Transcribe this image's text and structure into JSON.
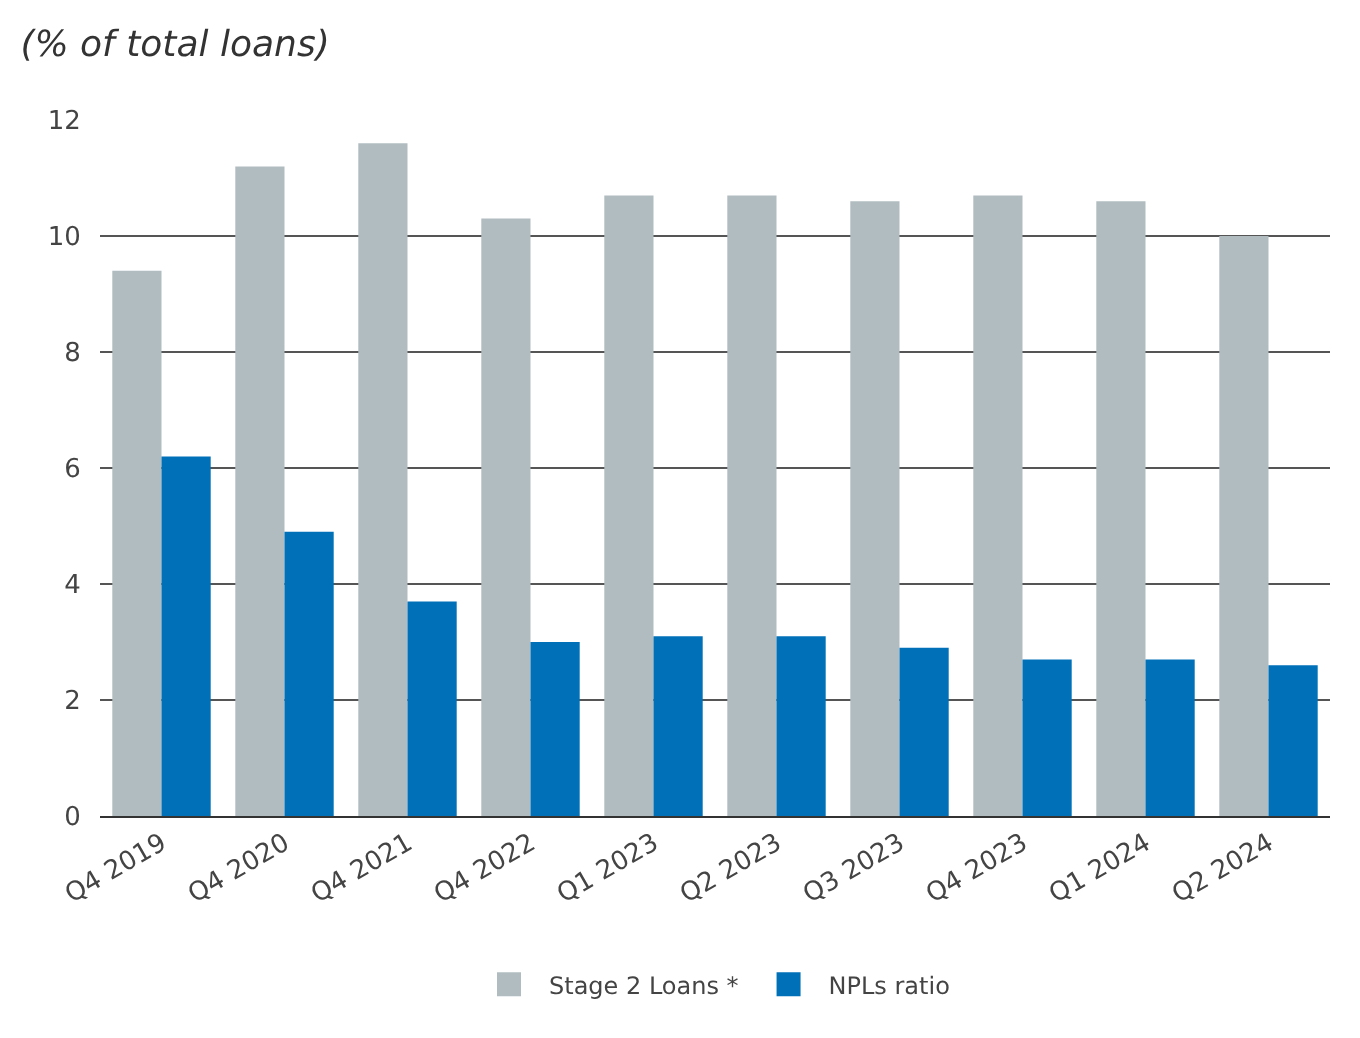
{
  "chart_data": {
    "type": "bar",
    "title": "(% of total loans)",
    "categories": [
      "Q4 2019",
      "Q4 2020",
      "Q4 2021",
      "Q4 2022",
      "Q1 2023",
      "Q2 2023",
      "Q3 2023",
      "Q4 2023",
      "Q1 2024",
      "Q2 2024"
    ],
    "series": [
      {
        "name": "Stage 2 Loans *",
        "color": "#b1bcc1",
        "values": [
          9.4,
          11.2,
          11.6,
          10.3,
          10.7,
          10.7,
          10.6,
          10.7,
          10.6,
          10.0
        ]
      },
      {
        "name": "NPLs ratio",
        "color": "#0071b9",
        "values": [
          6.2,
          4.9,
          3.7,
          3.0,
          3.1,
          3.1,
          2.9,
          2.7,
          2.7,
          2.6
        ]
      }
    ],
    "ylim": [
      0,
      12
    ],
    "yticks": [
      0,
      2,
      4,
      6,
      8,
      10,
      12
    ],
    "grid": "y",
    "legend": "bottom"
  }
}
